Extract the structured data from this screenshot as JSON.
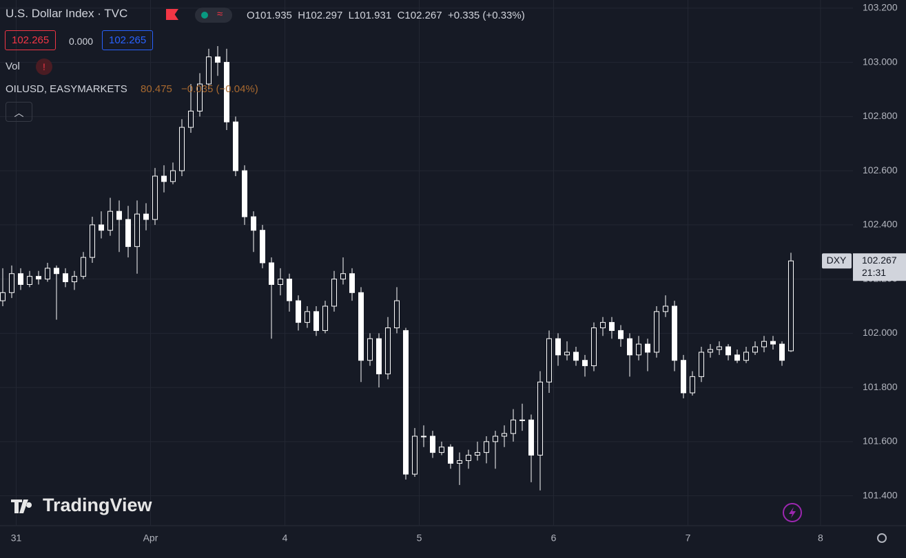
{
  "chart_data": {
    "type": "candlestick",
    "header": {
      "title": "U.S. Dollar Index · TVC",
      "open": "O101.935",
      "high": "H102.297",
      "low": "L101.931",
      "close": "C102.267",
      "change": "+0.335 (+0.33%)",
      "bid": "102.265",
      "spread": "0.000",
      "ask": "102.265",
      "vol": "Vol",
      "overlay": "OILUSD, EASYMARKETS",
      "overlay_price": "80.475",
      "overlay_change": "−0.035 (−0.04%)"
    },
    "symbol": "DXY",
    "countdown": "21:31",
    "watermark": "TradingView",
    "color": "#ffffff",
    "ylim": [
      101.3,
      103.23
    ],
    "yticks": [
      {
        "value": 101.4,
        "label": "101.400"
      },
      {
        "value": 101.6,
        "label": "101.600"
      },
      {
        "value": 101.8,
        "label": "101.800"
      },
      {
        "value": 102,
        "label": "102.000"
      },
      {
        "value": 102.2,
        "label": "102.200"
      },
      {
        "value": 102.4,
        "label": "102.400"
      },
      {
        "value": 102.6,
        "label": "102.600"
      },
      {
        "value": 102.8,
        "label": "102.800"
      },
      {
        "value": 103,
        "label": "103.000"
      },
      {
        "value": 103.2,
        "label": "103.200"
      }
    ],
    "xticks": [
      {
        "value": 1.5,
        "label": "31"
      },
      {
        "value": 16.5,
        "label": "Apr"
      },
      {
        "value": 31.5,
        "label": "4"
      },
      {
        "value": 46.5,
        "label": "5"
      },
      {
        "value": 61.5,
        "label": "6"
      },
      {
        "value": 76.5,
        "label": "7"
      },
      {
        "value": 91.3,
        "label": "8"
      }
    ],
    "grid": true,
    "ohlc": [
      [
        102.12,
        102.24,
        102.1,
        102.15
      ],
      [
        102.15,
        102.25,
        102.13,
        102.22
      ],
      [
        102.22,
        102.24,
        102.16,
        102.18
      ],
      [
        102.18,
        102.23,
        102.17,
        102.21
      ],
      [
        102.21,
        102.23,
        102.18,
        102.2
      ],
      [
        102.2,
        102.26,
        102.19,
        102.24
      ],
      [
        102.24,
        102.25,
        102.05,
        102.22
      ],
      [
        102.22,
        102.24,
        102.17,
        102.19
      ],
      [
        102.19,
        102.23,
        102.16,
        102.21
      ],
      [
        102.21,
        102.3,
        102.2,
        102.28
      ],
      [
        102.28,
        102.43,
        102.26,
        102.4
      ],
      [
        102.4,
        102.45,
        102.35,
        102.38
      ],
      [
        102.38,
        102.5,
        102.36,
        102.45
      ],
      [
        102.45,
        102.49,
        102.3,
        102.42
      ],
      [
        102.42,
        102.47,
        102.28,
        102.32
      ],
      [
        102.32,
        102.49,
        102.22,
        102.44
      ],
      [
        102.44,
        102.48,
        102.38,
        102.42
      ],
      [
        102.42,
        102.61,
        102.4,
        102.58
      ],
      [
        102.58,
        102.62,
        102.52,
        102.56
      ],
      [
        102.56,
        102.63,
        102.55,
        102.6
      ],
      [
        102.6,
        102.79,
        102.58,
        102.76
      ],
      [
        102.76,
        102.92,
        102.74,
        102.82
      ],
      [
        102.82,
        102.96,
        102.8,
        102.92
      ],
      [
        102.92,
        103.05,
        102.9,
        103.02
      ],
      [
        103.02,
        103.06,
        102.95,
        103
      ],
      [
        103,
        103.05,
        102.75,
        102.78
      ],
      [
        102.78,
        102.8,
        102.58,
        102.6
      ],
      [
        102.6,
        102.62,
        102.4,
        102.43
      ],
      [
        102.43,
        102.45,
        102.3,
        102.38
      ],
      [
        102.38,
        102.4,
        102.24,
        102.26
      ],
      [
        102.26,
        102.28,
        101.98,
        102.18
      ],
      [
        102.18,
        102.24,
        102.14,
        102.2
      ],
      [
        102.2,
        102.22,
        102.08,
        102.12
      ],
      [
        102.12,
        102.14,
        102.01,
        102.04
      ],
      [
        102.04,
        102.1,
        102.02,
        102.08
      ],
      [
        102.08,
        102.1,
        101.99,
        102.01
      ],
      [
        102.01,
        102.12,
        102,
        102.1
      ],
      [
        102.1,
        102.23,
        102.08,
        102.2
      ],
      [
        102.2,
        102.28,
        102.18,
        102.22
      ],
      [
        102.22,
        102.24,
        102.12,
        102.15
      ],
      [
        102.15,
        102.17,
        101.82,
        101.9
      ],
      [
        101.9,
        102,
        101.88,
        101.98
      ],
      [
        101.98,
        102,
        101.8,
        101.85
      ],
      [
        101.85,
        102.06,
        101.83,
        102.02
      ],
      [
        102.02,
        102.17,
        102,
        102.12
      ],
      [
        102.01,
        102.02,
        101.46,
        101.48
      ],
      [
        101.48,
        101.65,
        101.47,
        101.62
      ],
      [
        101.62,
        101.66,
        101.58,
        101.62
      ],
      [
        101.62,
        101.64,
        101.54,
        101.56
      ],
      [
        101.56,
        101.6,
        101.55,
        101.58
      ],
      [
        101.58,
        101.59,
        101.5,
        101.52
      ],
      [
        101.52,
        101.56,
        101.44,
        101.53
      ],
      [
        101.53,
        101.57,
        101.5,
        101.55
      ],
      [
        101.55,
        101.6,
        101.53,
        101.56
      ],
      [
        101.56,
        101.62,
        101.52,
        101.6
      ],
      [
        101.6,
        101.64,
        101.5,
        101.62
      ],
      [
        101.62,
        101.66,
        101.58,
        101.63
      ],
      [
        101.63,
        101.72,
        101.6,
        101.68
      ],
      [
        101.68,
        101.74,
        101.64,
        101.68
      ],
      [
        101.68,
        101.7,
        101.45,
        101.55
      ],
      [
        101.55,
        101.86,
        101.42,
        101.82
      ],
      [
        101.82,
        102.01,
        101.78,
        101.98
      ],
      [
        101.98,
        102,
        101.88,
        101.92
      ],
      [
        101.92,
        101.97,
        101.9,
        101.93
      ],
      [
        101.93,
        101.95,
        101.88,
        101.9
      ],
      [
        101.9,
        101.92,
        101.84,
        101.88
      ],
      [
        101.88,
        102.04,
        101.86,
        102.02
      ],
      [
        102.02,
        102.06,
        101.99,
        102.04
      ],
      [
        102.04,
        102.06,
        101.98,
        102.01
      ],
      [
        102.01,
        102.03,
        101.95,
        101.98
      ],
      [
        101.98,
        102,
        101.84,
        101.92
      ],
      [
        101.92,
        101.99,
        101.9,
        101.96
      ],
      [
        101.96,
        101.98,
        101.86,
        101.93
      ],
      [
        101.93,
        102.1,
        101.91,
        102.08
      ],
      [
        102.08,
        102.14,
        102.06,
        102.1
      ],
      [
        102.1,
        102.12,
        101.86,
        101.9
      ],
      [
        101.9,
        101.92,
        101.76,
        101.78
      ],
      [
        101.78,
        101.86,
        101.77,
        101.84
      ],
      [
        101.84,
        101.95,
        101.82,
        101.93
      ],
      [
        101.93,
        101.96,
        101.91,
        101.94
      ],
      [
        101.94,
        101.97,
        101.92,
        101.95
      ],
      [
        101.95,
        101.96,
        101.9,
        101.92
      ],
      [
        101.92,
        101.94,
        101.89,
        101.9
      ],
      [
        101.9,
        101.95,
        101.89,
        101.93
      ],
      [
        101.93,
        101.97,
        101.92,
        101.95
      ],
      [
        101.95,
        101.99,
        101.93,
        101.97
      ],
      [
        101.97,
        101.99,
        101.94,
        101.96
      ],
      [
        101.96,
        101.97,
        101.88,
        101.9
      ],
      [
        101.935,
        102.297,
        101.931,
        102.267
      ]
    ]
  }
}
